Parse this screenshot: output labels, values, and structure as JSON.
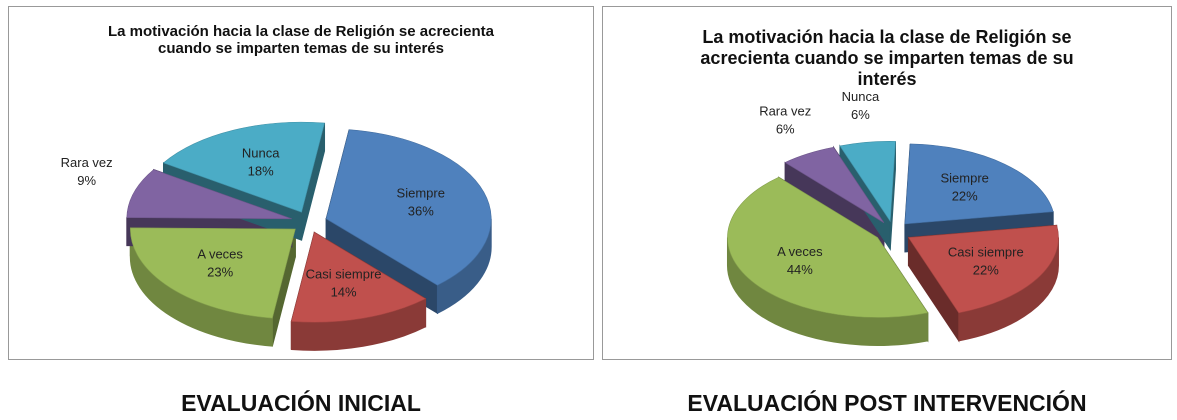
{
  "chart_data": [
    {
      "type": "pie3d",
      "title": "La motivación hacia la clase de Religión se acrecienta cuando se imparten temas de su interés",
      "caption": "EVALUACIÓN INICIAL",
      "categories": [
        "Siempre",
        "Casi siempre",
        "A veces",
        "Rara vez",
        "Nunca"
      ],
      "values": [
        36,
        14,
        23,
        9,
        18
      ],
      "value_labels": [
        "36%",
        "14%",
        "23%",
        "9%",
        "18%"
      ],
      "colors": [
        "#4f81bd",
        "#c0504d",
        "#9bbb59",
        "#8064a2",
        "#4bacc6"
      ]
    },
    {
      "type": "pie3d",
      "title": "La motivación hacia la clase de Religión se acrecienta cuando se imparten temas de su interés",
      "caption": "EVALUACIÓN POST INTERVENCIÓN",
      "categories": [
        "Siempre",
        "Casi siempre",
        "A veces",
        "Rara vez",
        "Nunca"
      ],
      "values": [
        22,
        22,
        44,
        6,
        6
      ],
      "value_labels": [
        "22%",
        "22%",
        "44%",
        "6%",
        "6%"
      ],
      "colors": [
        "#4f81bd",
        "#c0504d",
        "#9bbb59",
        "#8064a2",
        "#4bacc6"
      ]
    }
  ]
}
